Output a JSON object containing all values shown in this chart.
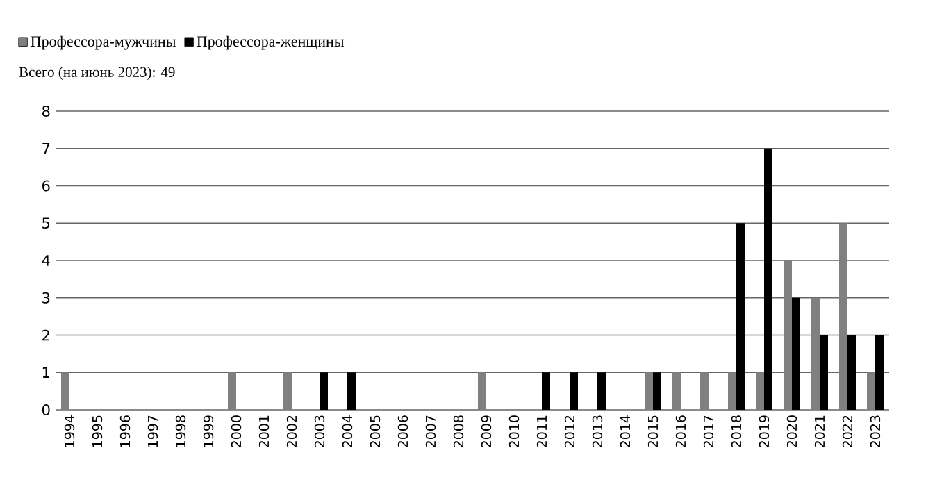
{
  "chart_data": {
    "type": "bar",
    "subtitle": "Всего (на июнь 2023): 49",
    "categories": [
      "1994",
      "1995",
      "1996",
      "1997",
      "1998",
      "1999",
      "2000",
      "2001",
      "2002",
      "2003",
      "2004",
      "2005",
      "2006",
      "2007",
      "2008",
      "2009",
      "2010",
      "2011",
      "2012",
      "2013",
      "2014",
      "2015",
      "2016",
      "2017",
      "2018",
      "2019",
      "2020",
      "2021",
      "2022",
      "2023"
    ],
    "series": [
      {
        "name": "Профессора-мужчины",
        "color": "#808080",
        "values": [
          1,
          0,
          0,
          0,
          0,
          0,
          1,
          0,
          1,
          0,
          0,
          0,
          0,
          0,
          0,
          1,
          0,
          0,
          0,
          0,
          0,
          1,
          1,
          1,
          1,
          1,
          4,
          3,
          5,
          1
        ]
      },
      {
        "name": "Профессора-женщины",
        "color": "#000000",
        "values": [
          0,
          0,
          0,
          0,
          0,
          0,
          0,
          0,
          0,
          1,
          1,
          0,
          0,
          0,
          0,
          0,
          0,
          1,
          1,
          1,
          0,
          1,
          0,
          0,
          5,
          7,
          3,
          2,
          2,
          2
        ]
      }
    ],
    "ylim": [
      0,
      8
    ],
    "yticks": [
      0,
      1,
      2,
      3,
      4,
      5,
      6,
      7,
      8
    ],
    "grid": "y",
    "legend": "top left"
  }
}
